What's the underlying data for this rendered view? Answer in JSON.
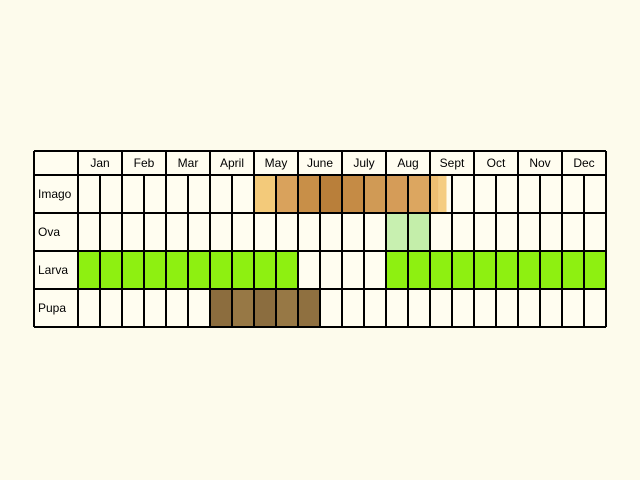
{
  "background": "#fdfbec",
  "grid_color": "#000000",
  "cell_color": "#fffdf0",
  "months": [
    "Jan",
    "Feb",
    "Mar",
    "April",
    "May",
    "June",
    "July",
    "Aug",
    "Sept",
    "Oct",
    "Nov",
    "Dec"
  ],
  "halves_per_month": 2,
  "stages": [
    {
      "label": "Imago",
      "bands": [
        {
          "from": 8,
          "to": 9,
          "color": "#f3ca7a"
        },
        {
          "from": 9,
          "to": 10,
          "color": "#d9a25c"
        },
        {
          "from": 10,
          "to": 11,
          "color": "#c88f48"
        },
        {
          "from": 11,
          "to": 12,
          "color": "#b97f3a"
        },
        {
          "from": 12,
          "to": 13,
          "color": "#c58b45"
        },
        {
          "from": 13,
          "to": 14,
          "color": "#d09a55"
        },
        {
          "from": 14,
          "to": 15,
          "color": "#d59c58"
        },
        {
          "from": 15,
          "to": 16,
          "color": "#dca660"
        },
        {
          "from": 16,
          "to": 16.4,
          "color": "#eebf72"
        },
        {
          "from": 16.4,
          "to": 16.75,
          "color": "#f5cd82"
        }
      ]
    },
    {
      "label": "Ova",
      "bands": [
        {
          "from": 14,
          "to": 15,
          "color": "#c8f0b0"
        },
        {
          "from": 15,
          "to": 16,
          "color": "#c4eeaa"
        }
      ]
    },
    {
      "label": "Larva",
      "bands": [
        {
          "from": 0,
          "to": 10,
          "color": "#8ef011"
        },
        {
          "from": 14,
          "to": 24,
          "color": "#8ef011"
        }
      ]
    },
    {
      "label": "Pupa",
      "bands": [
        {
          "from": 6,
          "to": 7,
          "color": "#8c6d3e"
        },
        {
          "from": 7,
          "to": 8,
          "color": "#977845"
        },
        {
          "from": 8,
          "to": 9,
          "color": "#8b6d3f"
        },
        {
          "from": 9,
          "to": 10,
          "color": "#977845"
        },
        {
          "from": 10,
          "to": 11,
          "color": "#8f7040"
        }
      ]
    }
  ]
}
